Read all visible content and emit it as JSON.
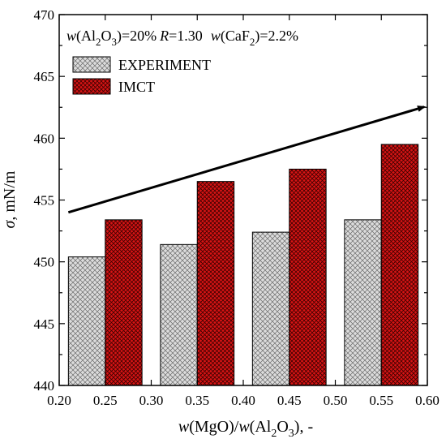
{
  "chart_data": {
    "type": "bar",
    "annotation": {
      "w_label": "w",
      "al2o3_open": "(Al",
      "al2o3_sub2": "2",
      "al2o3_o": "O",
      "al2o3_sub3": "3",
      "al2o3_close": ")=20%",
      "r_label": "R",
      "r_value": "=1.30",
      "caf2_open": "(CaF",
      "caf2_sub2": "2",
      "caf2_close": ")=2.2%"
    },
    "ylabel": {
      "symbol": "σ",
      "unit": ", mN/m"
    },
    "xlabel": {
      "w1": "w",
      "mgo": "(MgO)/",
      "w2": "w",
      "al2o3_open": "(Al",
      "sub2": "2",
      "o": "O",
      "sub3": "3",
      "close": "), -"
    },
    "xlim": [
      0.2,
      0.6
    ],
    "ylim": [
      440,
      470
    ],
    "x_ticks": [
      "0.20",
      "0.25",
      "0.30",
      "0.35",
      "0.40",
      "0.45",
      "0.50",
      "0.55",
      "0.60"
    ],
    "y_ticks": [
      "440",
      "445",
      "450",
      "455",
      "460",
      "465",
      "470"
    ],
    "x_centers": [
      0.25,
      0.35,
      0.45,
      0.55
    ],
    "series": [
      {
        "name": "EXPERIMENT",
        "values": [
          450.4,
          451.4,
          452.4,
          453.4
        ],
        "color": "#d8d8d8",
        "pattern": "gray-crosshatch"
      },
      {
        "name": "IMCT",
        "values": [
          453.4,
          456.5,
          457.5,
          459.5
        ],
        "color": "#cc1111",
        "pattern": "red-crosshatch"
      }
    ],
    "trend_arrow": {
      "from": [
        0.21,
        454.0
      ],
      "to": [
        0.6,
        462.6
      ]
    },
    "legend_placement": "top-left",
    "grid": false
  }
}
